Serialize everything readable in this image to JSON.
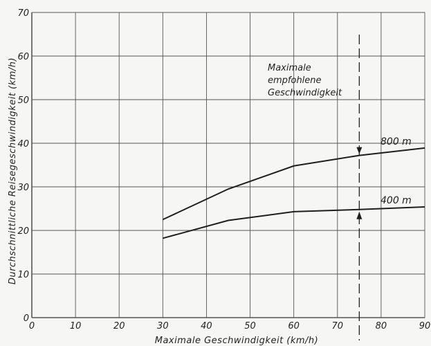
{
  "chart_data": {
    "type": "line",
    "xlabel": "Maximale Geschwindigkeit (km/h)",
    "ylabel": "Durchschnittliche Reisegeschwindigkeit (km/h)",
    "xlim": [
      0,
      90
    ],
    "ylim": [
      0,
      70
    ],
    "x_ticks": [
      0,
      10,
      20,
      30,
      40,
      50,
      60,
      70,
      80,
      90
    ],
    "y_ticks": [
      0,
      10,
      20,
      30,
      40,
      50,
      60,
      70
    ],
    "grid": true,
    "series": [
      {
        "name": "800 m",
        "x": [
          30,
          45,
          60,
          75,
          90
        ],
        "y": [
          22.5,
          29.5,
          34.8,
          37.2,
          38.9
        ]
      },
      {
        "name": "400 m",
        "x": [
          30,
          45,
          60,
          75,
          90
        ],
        "y": [
          18.2,
          22.3,
          24.3,
          24.8,
          25.4
        ]
      }
    ],
    "annotation": {
      "lines": [
        "Maximale",
        "empfohlene",
        "Geschwindigkeit"
      ],
      "x": 75
    }
  }
}
